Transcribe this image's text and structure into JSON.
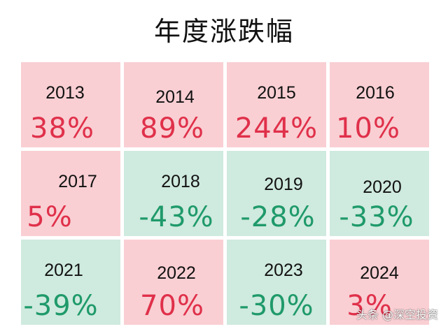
{
  "title": "年度涨跌幅",
  "colors": {
    "up_bg": "#f9cfd3",
    "down_bg": "#cfeadf",
    "up_text": "#e0304a",
    "down_text": "#1f9a6a"
  },
  "cells": [
    {
      "year": "2013",
      "change": "38%",
      "trend": "up"
    },
    {
      "year": "2014",
      "change": "89%",
      "trend": "up"
    },
    {
      "year": "2015",
      "change": "244%",
      "trend": "up"
    },
    {
      "year": "2016",
      "change": "10%",
      "trend": "up"
    },
    {
      "year": "2017",
      "change": "5%",
      "trend": "up"
    },
    {
      "year": "2018",
      "change": "-43%",
      "trend": "down"
    },
    {
      "year": "2019",
      "change": "-28%",
      "trend": "down"
    },
    {
      "year": "2020",
      "change": "-33%",
      "trend": "down"
    },
    {
      "year": "2021",
      "change": "-39%",
      "trend": "down"
    },
    {
      "year": "2022",
      "change": "70%",
      "trend": "up"
    },
    {
      "year": "2023",
      "change": "-30%",
      "trend": "down"
    },
    {
      "year": "2024",
      "change": "3%",
      "trend": "up"
    }
  ],
  "watermark": "头条 @深空投资"
}
